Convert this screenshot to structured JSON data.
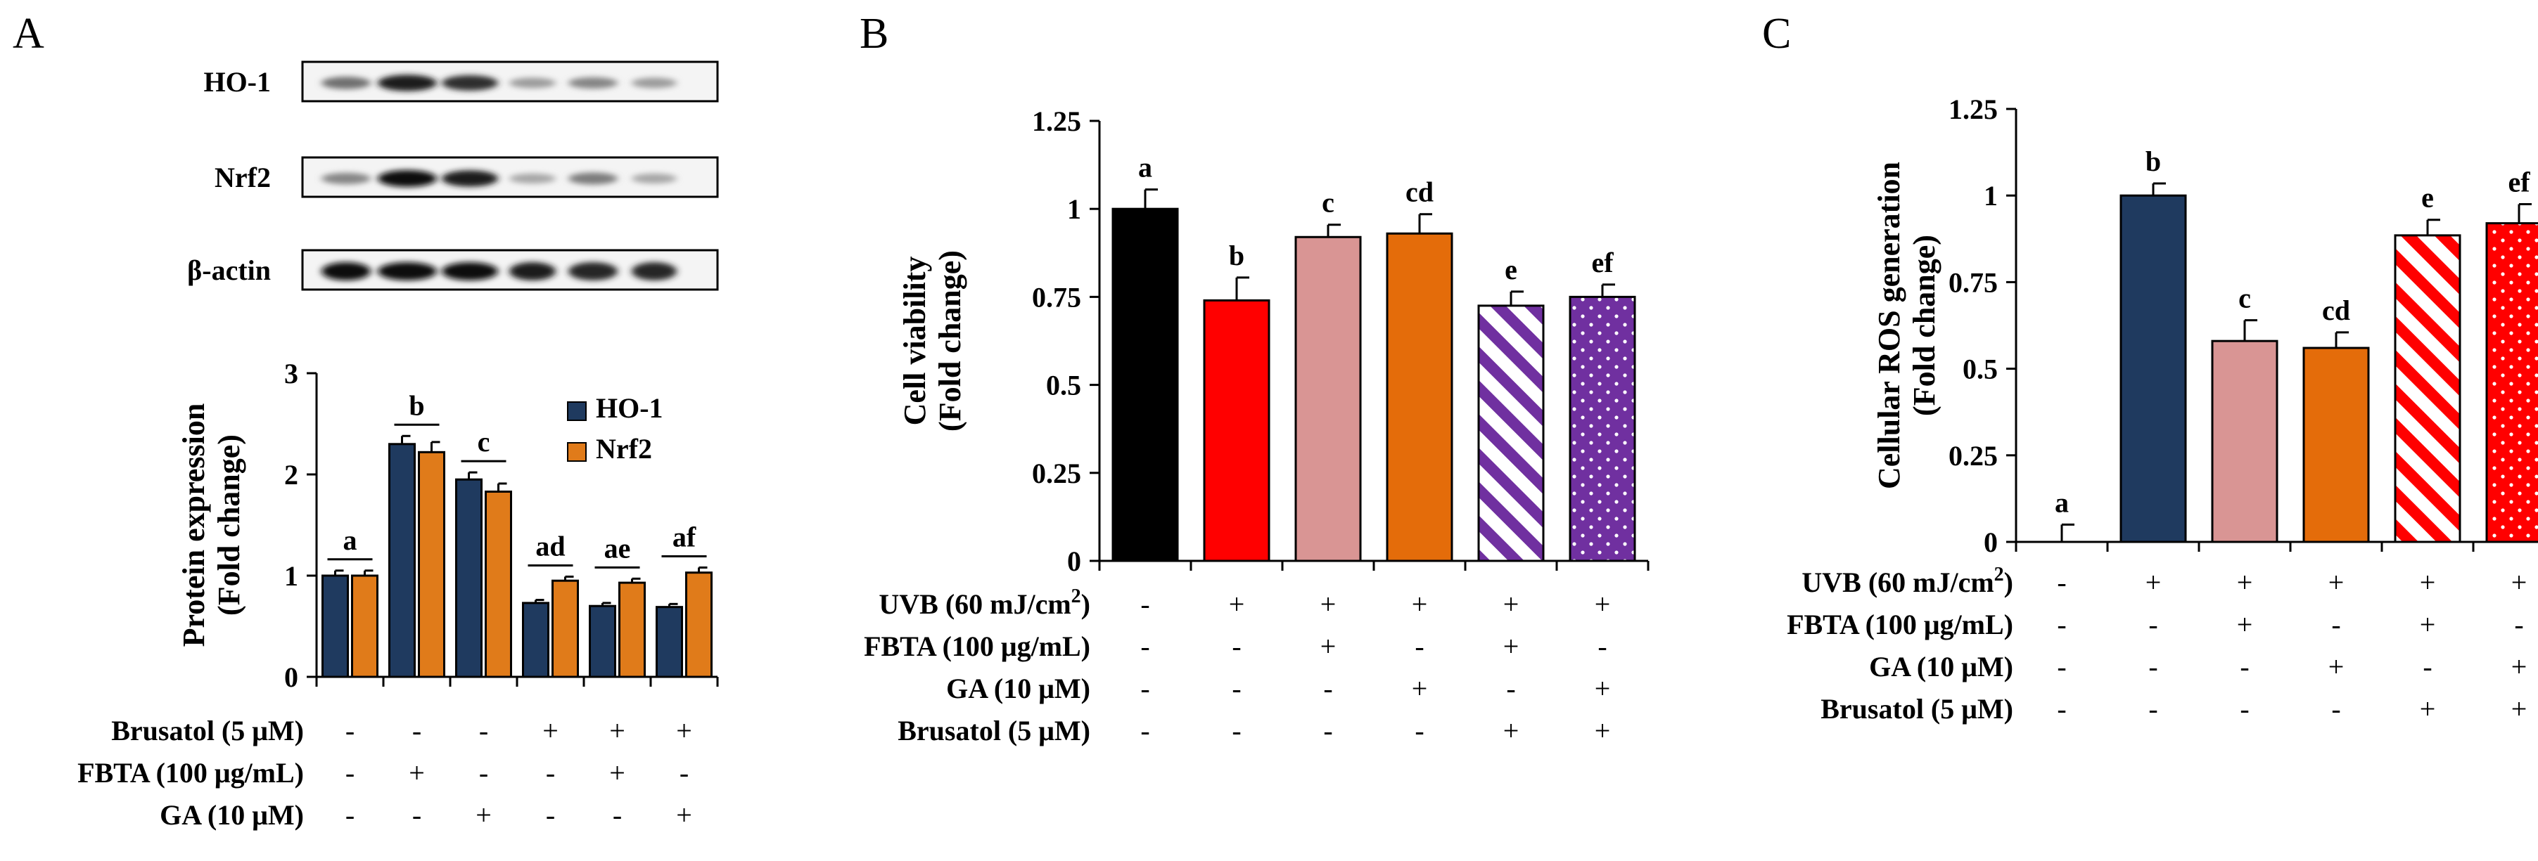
{
  "panels": {
    "A": {
      "letter": "A"
    },
    "B": {
      "letter": "B"
    },
    "C": {
      "letter": "C"
    }
  },
  "blot": {
    "rows": [
      {
        "label": "HO-1",
        "intensity": [
          0.55,
          0.95,
          0.85,
          0.35,
          0.45,
          0.35
        ]
      },
      {
        "label": "Nrf2",
        "intensity": [
          0.45,
          1.0,
          0.95,
          0.3,
          0.5,
          0.3
        ]
      },
      {
        "label": "β-actin",
        "intensity": [
          1.0,
          1.0,
          1.0,
          0.95,
          0.9,
          0.9
        ]
      }
    ]
  },
  "chart_data": [
    {
      "id": "A",
      "type": "bar",
      "ylabel_line1": "Protein expression",
      "ylabel_line2": "(Fold change)",
      "ylim": [
        0,
        3
      ],
      "yticks": [
        "0",
        "1",
        "2",
        "3"
      ],
      "colors": {
        "HO-1": "#1f3a5f",
        "Nrf2": "#e07b1a"
      },
      "series": [
        {
          "name": "HO-1",
          "values": [
            1.0,
            2.3,
            1.95,
            0.73,
            0.7,
            0.69
          ],
          "errors": [
            0.05,
            0.08,
            0.07,
            0.03,
            0.03,
            0.03
          ]
        },
        {
          "name": "Nrf2",
          "values": [
            1.0,
            2.22,
            1.83,
            0.95,
            0.93,
            1.03
          ],
          "errors": [
            0.05,
            0.1,
            0.08,
            0.04,
            0.04,
            0.05
          ]
        }
      ],
      "letters": [
        "a",
        "b",
        "c",
        "ad",
        "ae",
        "af"
      ],
      "conditions": [
        {
          "label": "Brusatol (5 μM)",
          "marks": [
            "-",
            "-",
            "-",
            "+",
            "+",
            "+"
          ]
        },
        {
          "label": "FBTA (100 μg/mL)",
          "marks": [
            "-",
            "+",
            "-",
            "-",
            "+",
            "-"
          ]
        },
        {
          "label": "GA (10 μM)",
          "marks": [
            "-",
            "-",
            "+",
            "-",
            "-",
            "+"
          ]
        }
      ]
    },
    {
      "id": "B",
      "type": "bar",
      "ylabel_line1": "Cell viability",
      "ylabel_line2": "(Fold change)",
      "ylim": [
        0,
        1.25
      ],
      "yticks": [
        "0",
        "0.25",
        "0.5",
        "0.75",
        "1",
        "1.25"
      ],
      "values": [
        1.0,
        0.74,
        0.92,
        0.93,
        0.725,
        0.75
      ],
      "errors": [
        0.055,
        0.065,
        0.035,
        0.055,
        0.04,
        0.035
      ],
      "fills": [
        "#000000",
        "#ff0000",
        "#d99594",
        "#e46c0a",
        "stripes-purple",
        "dots-purple"
      ],
      "letters": [
        "a",
        "b",
        "c",
        "cd",
        "e",
        "ef"
      ],
      "conditions": [
        {
          "label": "UVB (60 mJ/cm",
          "sup": "2",
          "tail": ")",
          "marks": [
            "-",
            "+",
            "+",
            "+",
            "+",
            "+"
          ]
        },
        {
          "label": "FBTA (100 μg/mL)",
          "marks": [
            "-",
            "-",
            "+",
            "-",
            "+",
            "-"
          ]
        },
        {
          "label": "GA (10 μM)",
          "marks": [
            "-",
            "-",
            "-",
            "+",
            "-",
            "+"
          ]
        },
        {
          "label": "Brusatol (5 μM)",
          "marks": [
            "-",
            "-",
            "-",
            "-",
            "+",
            "+"
          ]
        }
      ]
    },
    {
      "id": "C",
      "type": "bar",
      "ylabel_line1": "Cellular ROS generation",
      "ylabel_line2": "(Fold change)",
      "ylim": [
        0,
        1.25
      ],
      "yticks": [
        "0",
        "0.25",
        "0.5",
        "0.75",
        "1",
        "1.25"
      ],
      "values": [
        0.0,
        1.0,
        0.58,
        0.56,
        0.885,
        0.92
      ],
      "errors": [
        0.05,
        0.035,
        0.06,
        0.045,
        0.045,
        0.055
      ],
      "fills": [
        "#ffffff",
        "#1f3a5f",
        "#d99594",
        "#e46c0a",
        "stripes-red",
        "dots-red"
      ],
      "letters": [
        "a",
        "b",
        "c",
        "cd",
        "e",
        "ef"
      ],
      "conditions": [
        {
          "label": "UVB (60 mJ/cm",
          "sup": "2",
          "tail": ")",
          "marks": [
            "-",
            "+",
            "+",
            "+",
            "+",
            "+"
          ]
        },
        {
          "label": "FBTA (100 μg/mL)",
          "marks": [
            "-",
            "-",
            "+",
            "-",
            "+",
            "-"
          ]
        },
        {
          "label": "GA (10 μM)",
          "marks": [
            "-",
            "-",
            "-",
            "+",
            "-",
            "+"
          ]
        },
        {
          "label": "Brusatol (5 μM)",
          "marks": [
            "-",
            "-",
            "-",
            "-",
            "+",
            "+"
          ]
        }
      ]
    }
  ]
}
